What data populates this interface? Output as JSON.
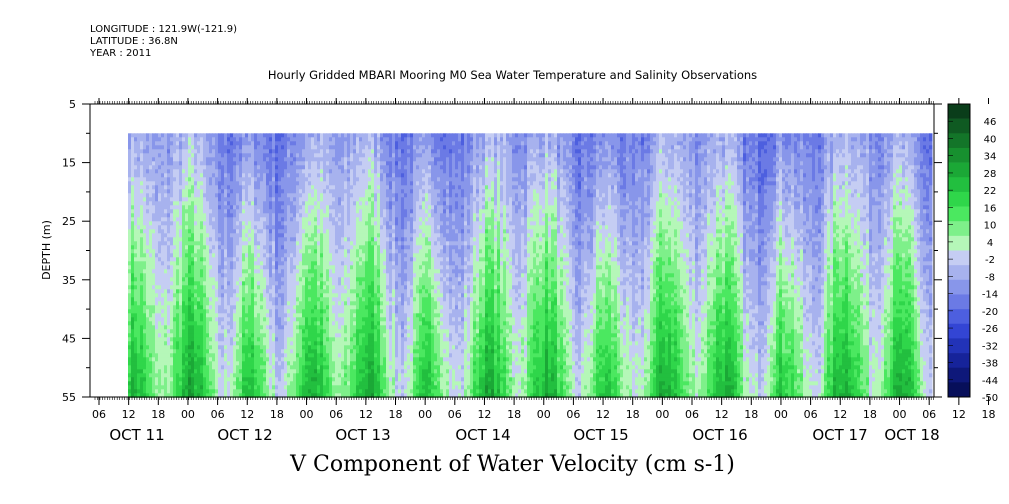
{
  "header": {
    "longitude": "LONGITUDE : 121.9W(-121.9)",
    "latitude": "LATITUDE : 36.8N",
    "year": "YEAR : 2011"
  },
  "chart_data": {
    "type": "heatmap",
    "title": "Hourly Gridded MBARI Mooring M0 Sea Water Temperature and Salinity Observations",
    "xlabel": "",
    "ylabel": "DEPTH (m)",
    "variable_label": "V Component of Water Velocity (cm s-1)",
    "y_axis": {
      "range": [
        5,
        55
      ],
      "inverted": true,
      "tick_values": [
        5,
        15,
        25,
        35,
        45,
        55
      ],
      "minor_tick_values": [
        10,
        20,
        30,
        40,
        50
      ]
    },
    "x_axis": {
      "hour_tick_labels": [
        "06",
        "12",
        "18",
        "00",
        "06",
        "12",
        "18",
        "00",
        "06",
        "12",
        "18",
        "00",
        "06",
        "12",
        "18",
        "00",
        "06",
        "12",
        "18",
        "00",
        "06",
        "12",
        "18",
        "00",
        "06",
        "12",
        "18",
        "00",
        "06",
        "12",
        "18",
        "00"
      ],
      "day_labels": [
        "OCT 11",
        "OCT 12",
        "OCT 13",
        "OCT 14",
        "OCT 15",
        "OCT 16",
        "OCT 17",
        "OCT 18"
      ],
      "data_start": "OCT 11 12:00",
      "data_end": "OCT 18 06:00"
    },
    "data_depth_range": [
      10,
      55
    ],
    "colorbar": {
      "tick_labels": [
        "46",
        "40",
        "34",
        "28",
        "22",
        "16",
        "10",
        "4",
        "-2",
        "-8",
        "-14",
        "-20",
        "-26",
        "-32",
        "-38",
        "-44",
        "-50"
      ],
      "top_value": 52,
      "bottom_value": -50,
      "colors_top_to_bottom": [
        "#0a3d1a",
        "#0f5a22",
        "#137529",
        "#17902f",
        "#1ba836",
        "#22bf3f",
        "#2fd64a",
        "#4be860",
        "#7ef08a",
        "#b5f7b8",
        "#c5cdf3",
        "#a7b2ee",
        "#8896ea",
        "#6b7ae5",
        "#4d5fdf",
        "#3345d4",
        "#2233b8",
        "#16239a",
        "#0e187a",
        "#070f5a"
      ]
    },
    "field_summary": "Negative (blue) velocities dominate the upper water column; positive (green) velocities dominate deeper layers, with alternating diurnal bands.",
    "colors": {
      "negative": "#6f86e8",
      "positive": "#39e07a",
      "neutral": "#b7f3b9",
      "frame": "#000000"
    }
  }
}
